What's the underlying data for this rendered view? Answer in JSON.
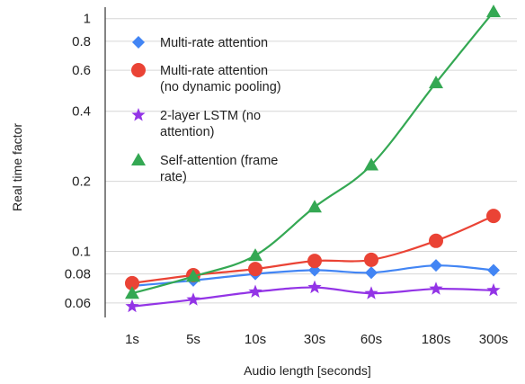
{
  "chart_data": {
    "type": "line",
    "title": "",
    "xlabel": "Audio length [seconds]",
    "ylabel": "Real time factor",
    "categories": [
      "1s",
      "5s",
      "10s",
      "30s",
      "60s",
      "180s",
      "300s"
    ],
    "yscale": "log",
    "ylim": [
      0.052,
      1.12
    ],
    "yticks": [
      0.06,
      0.08,
      0.1,
      0.2,
      0.4,
      0.6,
      0.8,
      1
    ],
    "ytick_labels": [
      "0.06",
      "0.08",
      "0.1",
      "0.2",
      "0.4",
      "0.6",
      "0.8",
      "1"
    ],
    "grid": "horizontal",
    "legend_position": "top-left",
    "series": [
      {
        "name": "Multi-rate attention",
        "color": "#4285f4",
        "marker": "diamond",
        "values": [
          0.071,
          0.075,
          0.08,
          0.083,
          0.081,
          0.087,
          0.083
        ]
      },
      {
        "name": "Multi-rate attention (no dynamic pooling)",
        "color": "#ea4335",
        "marker": "circle",
        "values": [
          0.073,
          0.079,
          0.084,
          0.091,
          0.092,
          0.111,
          0.142
        ]
      },
      {
        "name": "2-layer LSTM (no attention)",
        "color": "#9334e6",
        "marker": "star",
        "values": [
          0.058,
          0.062,
          0.067,
          0.07,
          0.066,
          0.069,
          0.068
        ]
      },
      {
        "name": "Self-attention (frame rate)",
        "color": "#34a853",
        "marker": "triangle",
        "values": [
          0.066,
          0.078,
          0.096,
          0.155,
          0.235,
          0.53,
          1.07
        ]
      }
    ],
    "legend_lines": [
      [
        "Multi-rate attention"
      ],
      [
        "Multi-rate attention",
        "(no dynamic pooling)"
      ],
      [
        "2-layer LSTM (no",
        "attention)"
      ],
      [
        "Self-attention (frame",
        "rate)"
      ]
    ]
  }
}
